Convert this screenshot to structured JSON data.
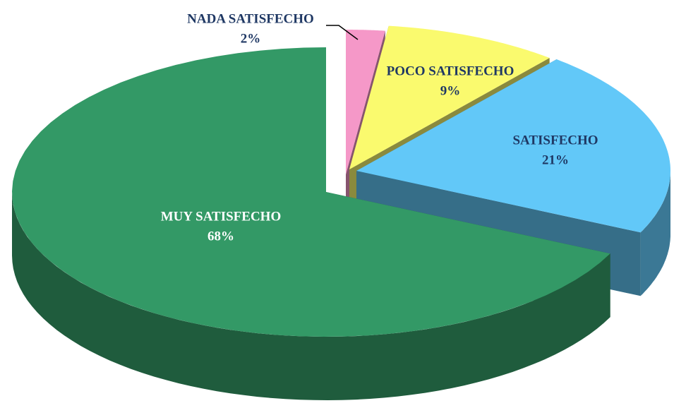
{
  "chart_data": {
    "type": "pie",
    "categories": [
      "NADA SATISFECHO",
      "POCO SATISFECHO",
      "SATISFECHO",
      "MUY SATISFECHO"
    ],
    "values": [
      2,
      9,
      21,
      68
    ],
    "value_labels": [
      "2%",
      "9%",
      "21%",
      "68%"
    ],
    "colors": [
      "#f598c8",
      "#fafa6e",
      "#62c8f8",
      "#339966"
    ]
  }
}
